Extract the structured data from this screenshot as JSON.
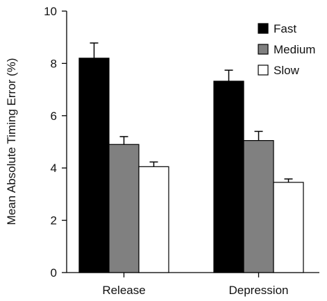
{
  "chart_data": {
    "type": "bar",
    "title": "",
    "xlabel": "",
    "ylabel": "Mean Absolute Timing Error (%)",
    "ylim": [
      0,
      10
    ],
    "yticks": [
      0,
      2,
      4,
      6,
      8,
      10
    ],
    "categories": [
      "Release",
      "Depression"
    ],
    "series": [
      {
        "name": "Fast",
        "values": [
          8.2,
          7.32
        ],
        "errors": [
          0.58,
          0.42
        ],
        "color": "#000000"
      },
      {
        "name": "Medium",
        "values": [
          4.9,
          5.05
        ],
        "errors": [
          0.3,
          0.35
        ],
        "color": "#808080"
      },
      {
        "name": "Slow",
        "values": [
          4.05,
          3.45
        ],
        "errors": [
          0.18,
          0.13
        ],
        "color": "#ffffff"
      }
    ],
    "legend": "top-right",
    "grid": false
  }
}
